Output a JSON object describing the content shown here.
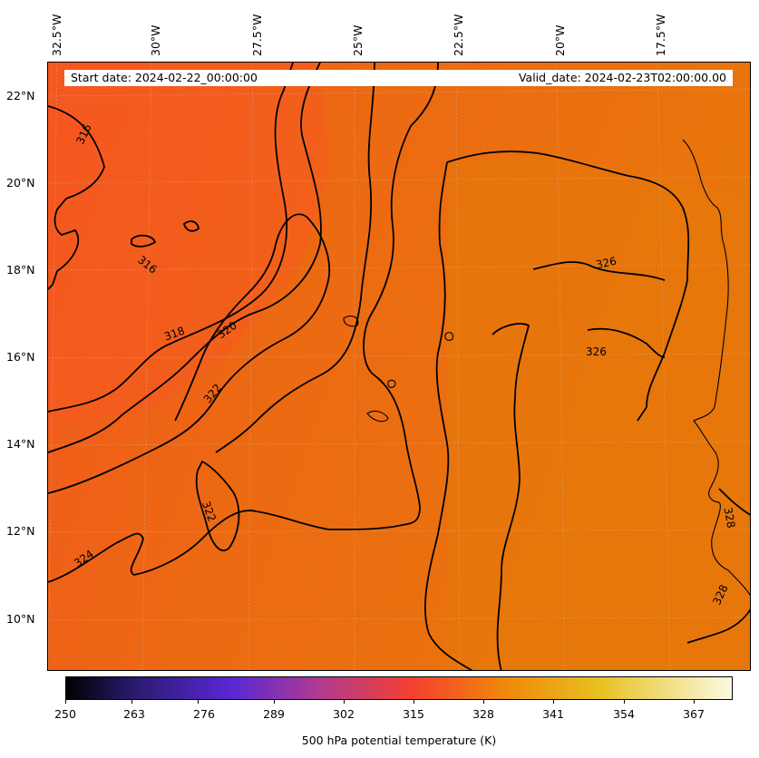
{
  "map": {
    "header_left": "Start date: 2024-02-22_00:00:00",
    "header_right": "Valid_date: 2024-02-23T02:00:00.00",
    "lon_labels": [
      "32.5°W",
      "30°W",
      "27.5°W",
      "25°W",
      "22.5°W",
      "20°W",
      "17.5°W"
    ],
    "lat_labels": [
      "22°N",
      "20°N",
      "18°N",
      "16°N",
      "14°N",
      "12°N",
      "10°N"
    ],
    "contour_labels": [
      "316",
      "316",
      "318",
      "320",
      "322",
      "322",
      "324",
      "326",
      "326",
      "328",
      "328"
    ],
    "colors": {
      "cold": "#f65a22",
      "warm": "#e8760c",
      "contour": "#000000",
      "coast": "#000000"
    }
  },
  "colorbar": {
    "ticks": [
      "250",
      "263",
      "276",
      "289",
      "302",
      "315",
      "328",
      "341",
      "354",
      "367"
    ],
    "label": "500 hPa potential temperature (K)",
    "stops": [
      "#000000",
      "#2a1a6e",
      "#5a28d4",
      "#b03a90",
      "#f54030",
      "#f0880a",
      "#e8c020",
      "#fafae0"
    ]
  }
}
